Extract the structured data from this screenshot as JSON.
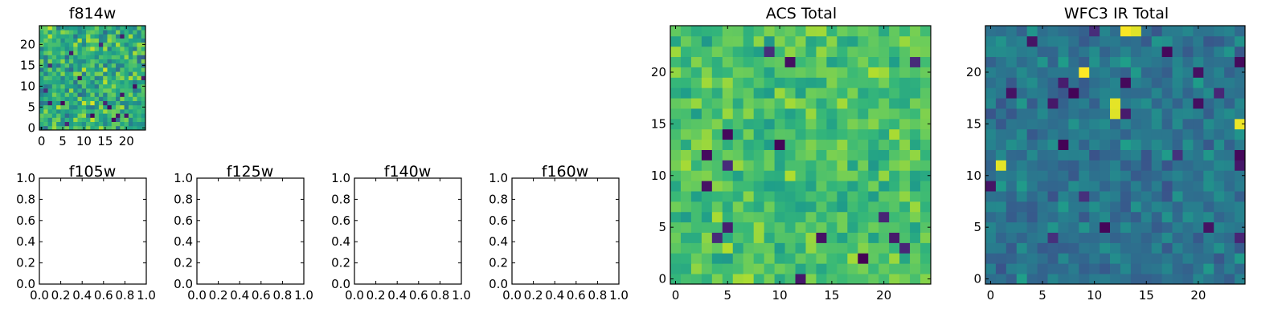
{
  "chart_data": [
    {
      "type": "heatmap",
      "title": "f814w",
      "xlim": [
        -0.5,
        24.5
      ],
      "ylim": [
        -0.5,
        24.5
      ],
      "xticks": [
        0,
        5,
        10,
        15,
        20
      ],
      "xtick_labels": [
        "0",
        "5",
        "10",
        "15",
        "20"
      ],
      "yticks": [
        0,
        5,
        10,
        15,
        20
      ],
      "ytick_labels": [
        "0",
        "5",
        "10",
        "15",
        "20"
      ],
      "grid_size": 25,
      "colormap": "viridis",
      "value_range": [
        0,
        1
      ],
      "seed": 814,
      "mean": 0.63,
      "spread": 0.2,
      "low_fraction": 0.03
    },
    {
      "type": "empty",
      "title": "f105w",
      "xlim": [
        0,
        1
      ],
      "ylim": [
        0,
        1
      ],
      "xtick_labels": [
        "0.0",
        "0.2",
        "0.4",
        "0.6",
        "0.8",
        "1.0"
      ],
      "ytick_labels": [
        "0.0",
        "0.2",
        "0.4",
        "0.6",
        "0.8",
        "1.0"
      ]
    },
    {
      "type": "empty",
      "title": "f125w",
      "xlim": [
        0,
        1
      ],
      "ylim": [
        0,
        1
      ],
      "xtick_labels": [
        "0.0",
        "0.2",
        "0.4",
        "0.6",
        "0.8",
        "1.0"
      ],
      "ytick_labels": [
        "0.0",
        "0.2",
        "0.4",
        "0.6",
        "0.8",
        "1.0"
      ]
    },
    {
      "type": "empty",
      "title": "f140w",
      "xlim": [
        0,
        1
      ],
      "ylim": [
        0,
        1
      ],
      "xtick_labels": [
        "0.0",
        "0.2",
        "0.4",
        "0.6",
        "0.8",
        "1.0"
      ],
      "ytick_labels": [
        "0.0",
        "0.2",
        "0.4",
        "0.6",
        "0.8",
        "1.0"
      ]
    },
    {
      "type": "empty",
      "title": "f160w",
      "xlim": [
        0,
        1
      ],
      "ylim": [
        0,
        1
      ],
      "xtick_labels": [
        "0.0",
        "0.2",
        "0.4",
        "0.6",
        "0.8",
        "1.0"
      ],
      "ytick_labels": [
        "0.0",
        "0.2",
        "0.4",
        "0.6",
        "0.8",
        "1.0"
      ]
    },
    {
      "type": "heatmap",
      "title": "ACS Total",
      "xlim": [
        -0.5,
        24.5
      ],
      "ylim": [
        -0.5,
        24.5
      ],
      "xticks": [
        0,
        5,
        10,
        15,
        20
      ],
      "xtick_labels": [
        "0",
        "5",
        "10",
        "15",
        "20"
      ],
      "yticks": [
        0,
        5,
        10,
        15,
        20
      ],
      "ytick_labels": [
        "0",
        "5",
        "10",
        "15",
        "20"
      ],
      "grid_size": 25,
      "colormap": "viridis",
      "value_range": [
        0,
        1
      ],
      "seed": 1234,
      "mean": 0.7,
      "spread": 0.12,
      "low_fraction": 0.02
    },
    {
      "type": "heatmap",
      "title": "WFC3 IR Total",
      "xlim": [
        -0.5,
        24.5
      ],
      "ylim": [
        -0.5,
        24.5
      ],
      "xticks": [
        0,
        5,
        10,
        15,
        20
      ],
      "xtick_labels": [
        "0",
        "5",
        "10",
        "15",
        "20"
      ],
      "yticks": [
        0,
        5,
        10,
        15,
        20
      ],
      "ytick_labels": [
        "0",
        "5",
        "10",
        "15",
        "20"
      ],
      "grid_size": 25,
      "colormap": "viridis",
      "value_range": [
        0,
        1
      ],
      "seed": 3160,
      "mean": 0.4,
      "spread": 0.1,
      "low_fraction": 0.04,
      "highlights": [
        [
          14,
          24
        ],
        [
          13,
          24
        ],
        [
          12,
          16
        ],
        [
          12,
          17
        ],
        [
          24,
          15
        ],
        [
          9,
          20
        ],
        [
          1,
          11
        ]
      ]
    }
  ]
}
